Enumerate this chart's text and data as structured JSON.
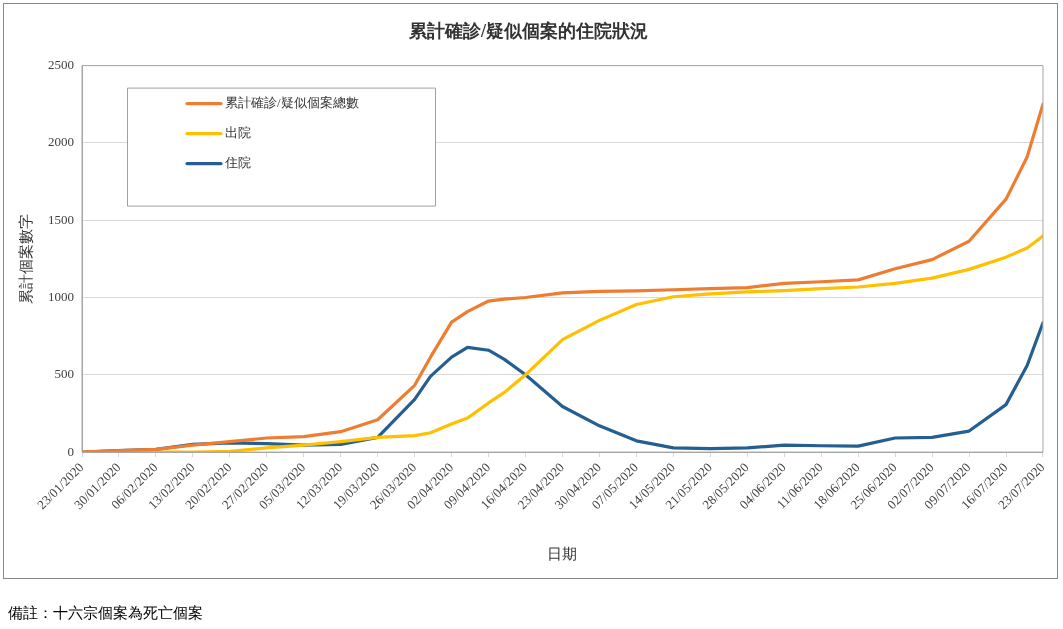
{
  "chart_data": {
    "type": "line",
    "title": "累計確診/疑似個案的住院狀況",
    "xlabel": "日期",
    "ylabel": "累計個案數字",
    "x": [
      "2020-01-23",
      "2020-01-30",
      "2020-02-06",
      "2020-02-13",
      "2020-02-20",
      "2020-02-27",
      "2020-03-05",
      "2020-03-12",
      "2020-03-19",
      "2020-03-26",
      "2020-03-29",
      "2020-04-02",
      "2020-04-05",
      "2020-04-09",
      "2020-04-12",
      "2020-04-16",
      "2020-04-23",
      "2020-04-30",
      "2020-05-07",
      "2020-05-14",
      "2020-05-21",
      "2020-05-28",
      "2020-06-04",
      "2020-06-11",
      "2020-06-18",
      "2020-06-25",
      "2020-07-02",
      "2020-07-09",
      "2020-07-16",
      "2020-07-20",
      "2020-07-23"
    ],
    "series": [
      {
        "name": "累計確診/疑似個案總數",
        "color": "#ed7d31",
        "values": [
          0,
          9,
          18,
          45,
          68,
          91,
          100,
          132,
          209,
          432,
          614,
          841,
          909,
          977,
          990,
          1000,
          1030,
          1039,
          1043,
          1050,
          1057,
          1064,
          1091,
          1102,
          1114,
          1186,
          1245,
          1364,
          1636,
          1909,
          2250
        ]
      },
      {
        "name": "出院",
        "color": "#ffc000",
        "values": [
          0,
          0,
          0,
          0,
          5,
          27,
          45,
          68,
          95,
          107,
          125,
          182,
          220,
          318,
          386,
          500,
          727,
          852,
          955,
          1005,
          1023,
          1036,
          1045,
          1057,
          1068,
          1091,
          1125,
          1182,
          1261,
          1320,
          1398
        ]
      },
      {
        "name": "住院",
        "color": "#255e91",
        "values": [
          0,
          9,
          18,
          50,
          59,
          55,
          45,
          50,
          95,
          341,
          490,
          614,
          677,
          659,
          600,
          500,
          295,
          170,
          73,
          27,
          23,
          27,
          45,
          41,
          39,
          91,
          95,
          136,
          307,
          560,
          836
        ]
      }
    ],
    "xlim": [
      "2020-01-23",
      "2020-07-23"
    ],
    "xticks": [
      {
        "value": "2020-01-23",
        "label": "23/01/2020"
      },
      {
        "value": "2020-01-30",
        "label": "30/01/2020"
      },
      {
        "value": "2020-02-06",
        "label": "06/02/2020"
      },
      {
        "value": "2020-02-13",
        "label": "13/02/2020"
      },
      {
        "value": "2020-02-20",
        "label": "20/02/2020"
      },
      {
        "value": "2020-02-27",
        "label": "27/02/2020"
      },
      {
        "value": "2020-03-05",
        "label": "05/03/2020"
      },
      {
        "value": "2020-03-12",
        "label": "12/03/2020"
      },
      {
        "value": "2020-03-19",
        "label": "19/03/2020"
      },
      {
        "value": "2020-03-26",
        "label": "26/03/2020"
      },
      {
        "value": "2020-04-02",
        "label": "02/04/2020"
      },
      {
        "value": "2020-04-09",
        "label": "09/04/2020"
      },
      {
        "value": "2020-04-16",
        "label": "16/04/2020"
      },
      {
        "value": "2020-04-23",
        "label": "23/04/2020"
      },
      {
        "value": "2020-04-30",
        "label": "30/04/2020"
      },
      {
        "value": "2020-05-07",
        "label": "07/05/2020"
      },
      {
        "value": "2020-05-14",
        "label": "14/05/2020"
      },
      {
        "value": "2020-05-21",
        "label": "21/05/2020"
      },
      {
        "value": "2020-05-28",
        "label": "28/05/2020"
      },
      {
        "value": "2020-06-04",
        "label": "04/06/2020"
      },
      {
        "value": "2020-06-11",
        "label": "11/06/2020"
      },
      {
        "value": "2020-06-18",
        "label": "18/06/2020"
      },
      {
        "value": "2020-06-25",
        "label": "25/06/2020"
      },
      {
        "value": "2020-07-02",
        "label": "02/07/2020"
      },
      {
        "value": "2020-07-09",
        "label": "09/07/2020"
      },
      {
        "value": "2020-07-16",
        "label": "16/07/2020"
      },
      {
        "value": "2020-07-23",
        "label": "23/07/2020"
      }
    ],
    "ylim": [
      0,
      2500
    ],
    "yticks": [
      0,
      500,
      1000,
      1500,
      2000,
      2500
    ],
    "grid": "y",
    "legend": "top left",
    "marker": "none",
    "line_style": "solid",
    "annotations": [
      "備註：十六宗個案為死亡個案"
    ]
  }
}
